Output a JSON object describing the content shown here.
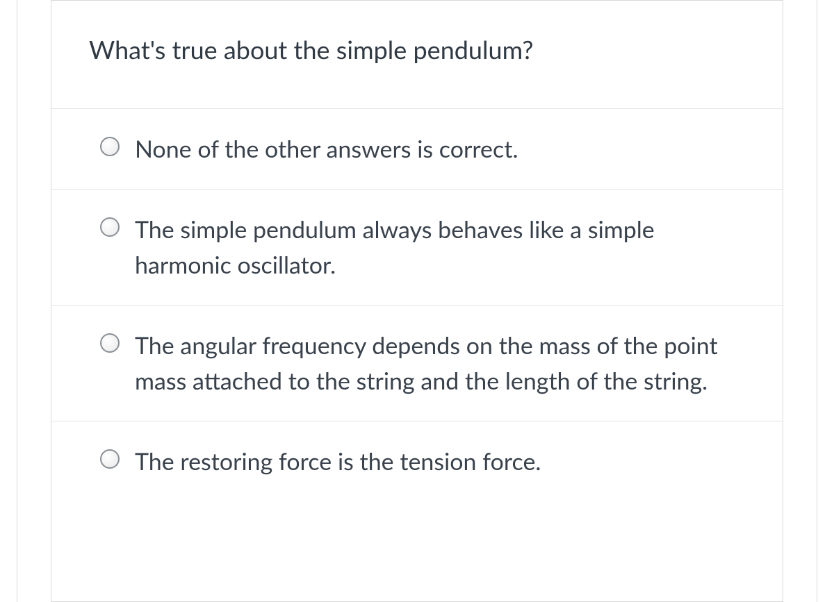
{
  "question": {
    "text": "What's true about the simple pendulum?"
  },
  "options": [
    {
      "label": "None of the other answers is correct."
    },
    {
      "label": "The simple pendulum always behaves like a simple harmonic oscillator."
    },
    {
      "label": "The angular frequency depends on the mass of the point mass attached to the string and the length of the string."
    },
    {
      "label": "The restoring force is the tension force."
    }
  ],
  "colors": {
    "text": "#303a44",
    "option_text": "#39424c",
    "border": "#d8d8d8",
    "divider": "#e4e4e4",
    "radio_border": "#8a8f96",
    "background": "#ffffff"
  }
}
